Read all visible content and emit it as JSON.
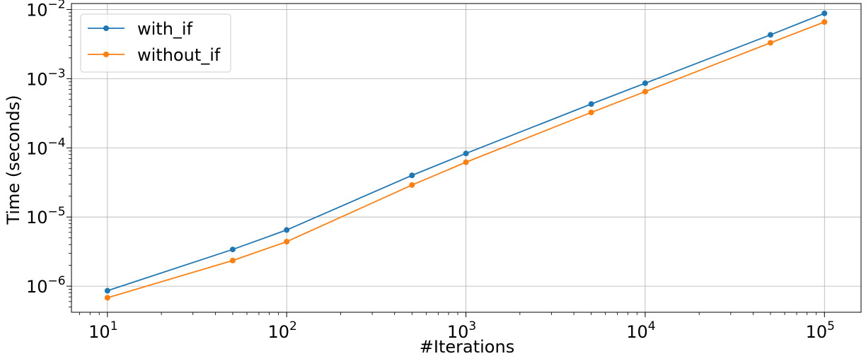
{
  "chart_data": {
    "type": "line",
    "title": "",
    "xlabel": "#Iterations",
    "ylabel": "Time (seconds)",
    "xscale": "log",
    "yscale": "log",
    "xlim": [
      6.3,
      160000
    ],
    "ylim": [
      4.2e-07,
      0.0122
    ],
    "grid": true,
    "legend_position": "top-left",
    "x": [
      10,
      50,
      100,
      500,
      1000,
      5000,
      10000,
      50000,
      100000
    ],
    "x_ticks": [
      {
        "value": 10,
        "base": "10",
        "exp": "1"
      },
      {
        "value": 100,
        "base": "10",
        "exp": "2"
      },
      {
        "value": 1000,
        "base": "10",
        "exp": "3"
      },
      {
        "value": 10000,
        "base": "10",
        "exp": "4"
      },
      {
        "value": 100000,
        "base": "10",
        "exp": "5"
      }
    ],
    "y_ticks": [
      {
        "value": 1e-06,
        "base": "10",
        "exp": "−6"
      },
      {
        "value": 1e-05,
        "base": "10",
        "exp": "−5"
      },
      {
        "value": 0.0001,
        "base": "10",
        "exp": "−4"
      },
      {
        "value": 0.001,
        "base": "10",
        "exp": "−3"
      },
      {
        "value": 0.01,
        "base": "10",
        "exp": "−2"
      }
    ],
    "series": [
      {
        "name": "with_if",
        "color": "#1f77b4",
        "values": [
          8.6e-07,
          3.4e-06,
          6.5e-06,
          4e-05,
          8.3e-05,
          0.00043,
          0.00086,
          0.0043,
          0.0088
        ]
      },
      {
        "name": "without_if",
        "color": "#ff7f0e",
        "values": [
          6.8e-07,
          2.35e-06,
          4.4e-06,
          2.9e-05,
          6.2e-05,
          0.000325,
          0.00065,
          0.0033,
          0.0066
        ]
      }
    ]
  }
}
